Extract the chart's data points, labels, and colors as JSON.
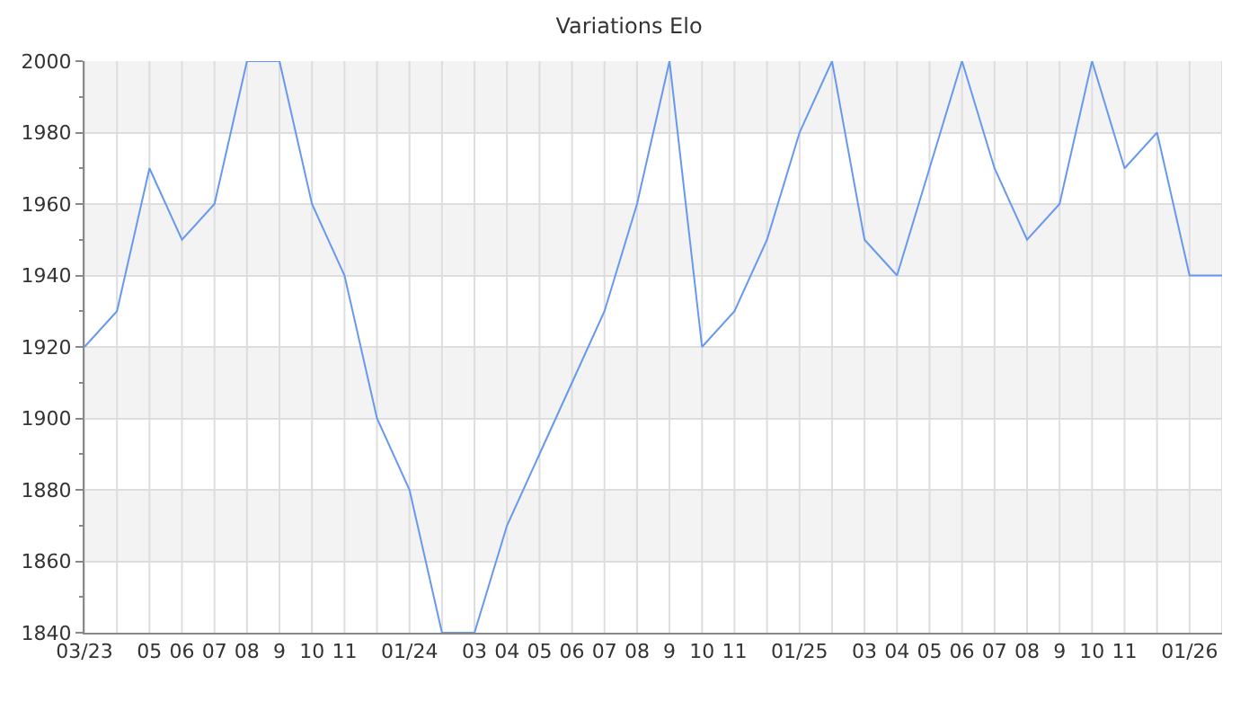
{
  "chart_data": {
    "type": "line",
    "title": "Variations Elo",
    "categories": [
      "03/23",
      null,
      "05",
      "06",
      "07",
      "08",
      "9",
      "10",
      "11",
      null,
      "01/24",
      null,
      "03",
      "04",
      "05",
      "06",
      "07",
      "08",
      "9",
      "10",
      "11",
      null,
      "01/25",
      null,
      "03",
      "04",
      "05",
      "06",
      "07",
      "08",
      "9",
      "10",
      "11",
      null,
      "01/26",
      null
    ],
    "series": [
      {
        "color": "#6699ee",
        "values": [
          1920,
          1930,
          1970,
          1950,
          1960,
          2000,
          2000,
          1960,
          1940,
          1900,
          1880,
          1840,
          1840,
          1870,
          1890,
          1910,
          1930,
          1960,
          2000,
          1920,
          1930,
          1950,
          1980,
          2000,
          1950,
          1940,
          1970,
          2000,
          1970,
          1950,
          1960,
          2000,
          1970,
          1980,
          1940,
          1940
        ]
      }
    ],
    "ylim": [
      1840,
      2000
    ],
    "yticks": [
      1840,
      1860,
      1880,
      1900,
      1920,
      1940,
      1960,
      1980,
      2000
    ],
    "grid": true,
    "marker": "none",
    "line_style": "solid"
  }
}
